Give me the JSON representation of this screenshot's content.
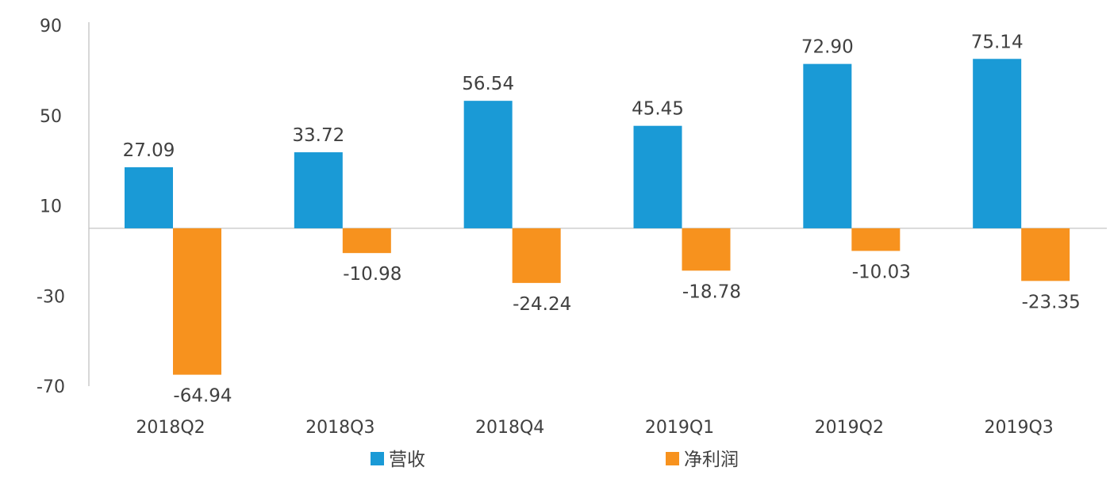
{
  "chart_data": {
    "type": "bar",
    "categories": [
      "2018Q2",
      "2018Q3",
      "2018Q4",
      "2019Q1",
      "2019Q2",
      "2019Q3"
    ],
    "series": [
      {
        "name": "营收",
        "color": "#1a9ad6",
        "values": [
          27.09,
          33.72,
          56.54,
          45.45,
          72.9,
          75.14
        ],
        "labels": [
          "27.09",
          "33.72",
          "56.54",
          "45.45",
          "72.90",
          "75.14"
        ]
      },
      {
        "name": "净利润",
        "color": "#f7921e",
        "values": [
          -64.94,
          -10.98,
          -24.24,
          -18.78,
          -10.03,
          -23.35
        ],
        "labels": [
          "-64.94",
          "-10.98",
          "-24.24",
          "-18.78",
          "-10.03",
          "-23.35"
        ]
      }
    ],
    "title": "",
    "xlabel": "",
    "ylabel": "",
    "ylim": [
      -70,
      90
    ],
    "yticks": [
      90,
      50,
      10,
      -30,
      -70
    ],
    "grid": false,
    "legend_position": "bottom"
  }
}
